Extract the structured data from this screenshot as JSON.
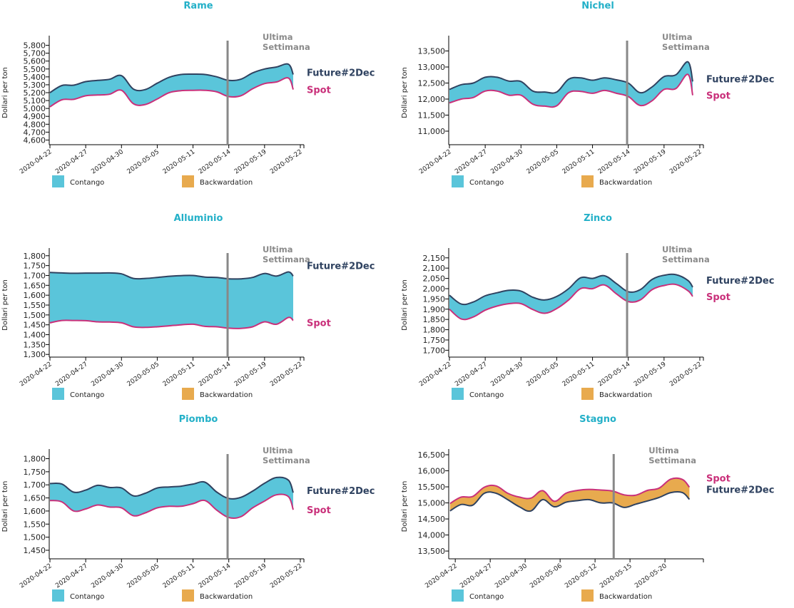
{
  "colors": {
    "title": "#23b0c8",
    "contango": "#5ac5da",
    "backwardation": "#e8aa4e",
    "future_line": "#2f4260",
    "spot_line": "#c9307a",
    "last_week_line": "#888888",
    "last_week_text": "#8a8a8a"
  },
  "common": {
    "ylabel": "Dollari per ton",
    "last_week_line1": "Ultima",
    "last_week_line2": "Settimana",
    "future_label": "Future#2Dec",
    "spot_label": "Spot",
    "legend": [
      {
        "label": "Contango",
        "color": "#5ac5da"
      },
      {
        "label": "Backwardation",
        "color": "#e8aa4e"
      }
    ]
  },
  "chart_data": [
    {
      "type": "area",
      "title": "Rame",
      "ylabel": "Dollari per ton",
      "ylim": [
        4550,
        5850
      ],
      "yticks": [
        4600,
        4700,
        4800,
        4900,
        5000,
        5100,
        5200,
        5300,
        5400,
        5500,
        5600,
        5700,
        5800
      ],
      "xlim": [
        0,
        21.3
      ],
      "xticks": [
        {
          "i": 0,
          "label": "2020-04-22"
        },
        {
          "i": 3,
          "label": "2020-04-27"
        },
        {
          "i": 6,
          "label": "2020-04-30"
        },
        {
          "i": 9,
          "label": "2020-05-05"
        },
        {
          "i": 12,
          "label": "2020-05-11"
        },
        {
          "i": 15,
          "label": "2020-05-14"
        },
        {
          "i": 18,
          "label": "2020-05-19"
        },
        {
          "i": 21,
          "label": "2020-05-22"
        }
      ],
      "last_week_x": 14.9,
      "label_order": [
        "future",
        "spot"
      ],
      "x": [
        0,
        1,
        2,
        3,
        4,
        5,
        6,
        7,
        8,
        9,
        10,
        11,
        12,
        13,
        14,
        15,
        16,
        17,
        18,
        19,
        20,
        20.4
      ],
      "series": [
        {
          "name": "Future#2Dec",
          "values": [
            5200,
            5290,
            5295,
            5340,
            5355,
            5370,
            5415,
            5245,
            5240,
            5320,
            5395,
            5430,
            5435,
            5430,
            5400,
            5355,
            5370,
            5450,
            5500,
            5525,
            5560,
            5430
          ]
        },
        {
          "name": "Spot",
          "values": [
            5020,
            5110,
            5115,
            5160,
            5170,
            5180,
            5230,
            5060,
            5050,
            5120,
            5200,
            5225,
            5230,
            5230,
            5210,
            5150,
            5160,
            5250,
            5315,
            5335,
            5385,
            5240
          ]
        }
      ]
    },
    {
      "type": "area",
      "title": "Nichel",
      "ylabel": "Dollari per ton",
      "ylim": [
        10600,
        13800
      ],
      "yticks": [
        11000,
        11500,
        12000,
        12500,
        13000,
        13500
      ],
      "xlim": [
        0,
        21.3
      ],
      "xticks": [
        {
          "i": 0,
          "label": "2020-04-22"
        },
        {
          "i": 3,
          "label": "2020-04-27"
        },
        {
          "i": 6,
          "label": "2020-04-30"
        },
        {
          "i": 9,
          "label": "2020-05-05"
        },
        {
          "i": 12,
          "label": "2020-05-11"
        },
        {
          "i": 15,
          "label": "2020-05-14"
        },
        {
          "i": 18,
          "label": "2020-05-19"
        },
        {
          "i": 21,
          "label": "2020-05-22"
        }
      ],
      "last_week_x": 14.9,
      "label_order": [
        "future",
        "spot"
      ],
      "x": [
        0,
        1,
        2,
        3,
        4,
        5,
        6,
        7,
        8,
        9,
        10,
        11,
        12,
        13,
        14,
        15,
        16,
        17,
        18,
        19,
        20,
        20.4
      ],
      "series": [
        {
          "name": "Future#2Dec",
          "values": [
            12300,
            12450,
            12500,
            12680,
            12680,
            12560,
            12550,
            12250,
            12220,
            12220,
            12620,
            12660,
            12590,
            12660,
            12600,
            12500,
            12200,
            12380,
            12700,
            12760,
            13160,
            12550
          ]
        },
        {
          "name": "Spot",
          "values": [
            11880,
            12000,
            12050,
            12250,
            12250,
            12120,
            12120,
            11840,
            11780,
            11790,
            12200,
            12240,
            12180,
            12270,
            12180,
            12080,
            11800,
            11950,
            12300,
            12330,
            12770,
            12120
          ]
        }
      ]
    },
    {
      "type": "area",
      "title": "Alluminio",
      "ylabel": "Dollari per ton",
      "ylim": [
        1290,
        1810
      ],
      "yticks": [
        1300,
        1350,
        1400,
        1450,
        1500,
        1550,
        1600,
        1650,
        1700,
        1750,
        1800
      ],
      "xlim": [
        0,
        21.3
      ],
      "xticks": [
        {
          "i": 0,
          "label": "2020-04-22"
        },
        {
          "i": 3,
          "label": "2020-04-27"
        },
        {
          "i": 6,
          "label": "2020-04-30"
        },
        {
          "i": 9,
          "label": "2020-05-05"
        },
        {
          "i": 12,
          "label": "2020-05-11"
        },
        {
          "i": 15,
          "label": "2020-05-14"
        },
        {
          "i": 18,
          "label": "2020-05-19"
        },
        {
          "i": 21,
          "label": "2020-05-22"
        }
      ],
      "last_week_x": 14.9,
      "label_order": [
        "future",
        "spot"
      ],
      "x": [
        0,
        1,
        2,
        3,
        4,
        5,
        6,
        7,
        8,
        9,
        10,
        11,
        12,
        13,
        14,
        15,
        16,
        17,
        18,
        19,
        20,
        20.4
      ],
      "series": [
        {
          "name": "Future#2Dec",
          "values": [
            1715,
            1713,
            1711,
            1712,
            1712,
            1713,
            1708,
            1685,
            1685,
            1690,
            1696,
            1699,
            1700,
            1692,
            1690,
            1683,
            1683,
            1690,
            1710,
            1697,
            1718,
            1697
          ]
        },
        {
          "name": "Spot",
          "values": [
            1460,
            1472,
            1472,
            1471,
            1465,
            1464,
            1460,
            1440,
            1437,
            1440,
            1445,
            1450,
            1453,
            1442,
            1440,
            1433,
            1432,
            1440,
            1465,
            1453,
            1487,
            1472
          ]
        }
      ]
    },
    {
      "type": "area",
      "title": "Zinco",
      "ylabel": "Dollari per ton",
      "ylim": [
        1670,
        2170
      ],
      "yticks": [
        1700,
        1750,
        1800,
        1850,
        1900,
        1950,
        2000,
        2050,
        2100,
        2150
      ],
      "xlim": [
        0,
        21.3
      ],
      "xticks": [
        {
          "i": 0,
          "label": "2020-04-22"
        },
        {
          "i": 3,
          "label": "2020-04-27"
        },
        {
          "i": 6,
          "label": "2020-04-30"
        },
        {
          "i": 9,
          "label": "2020-05-05"
        },
        {
          "i": 12,
          "label": "2020-05-11"
        },
        {
          "i": 15,
          "label": "2020-05-14"
        },
        {
          "i": 18,
          "label": "2020-05-19"
        },
        {
          "i": 21,
          "label": "2020-05-22"
        }
      ],
      "last_week_x": 14.9,
      "label_order": [
        "future",
        "spot"
      ],
      "x": [
        0,
        1,
        2,
        3,
        4,
        5,
        6,
        7,
        8,
        9,
        10,
        11,
        12,
        13,
        14,
        15,
        16,
        17,
        18,
        19,
        20,
        20.4
      ],
      "series": [
        {
          "name": "Future#2Dec",
          "values": [
            1968,
            1925,
            1935,
            1965,
            1980,
            1992,
            1988,
            1958,
            1945,
            1962,
            2000,
            2053,
            2050,
            2063,
            2025,
            1985,
            1995,
            2045,
            2065,
            2068,
            2040,
            2007
          ]
        },
        {
          "name": "Spot",
          "values": [
            1900,
            1852,
            1862,
            1895,
            1915,
            1927,
            1927,
            1898,
            1880,
            1903,
            1945,
            2000,
            2000,
            2018,
            1975,
            1937,
            1945,
            1995,
            2015,
            2020,
            1990,
            1962
          ]
        }
      ]
    },
    {
      "type": "area",
      "title": "Piombo",
      "ylabel": "Dollari per ton",
      "ylim": [
        1420,
        1815
      ],
      "yticks": [
        1450,
        1500,
        1550,
        1600,
        1650,
        1700,
        1750,
        1800
      ],
      "xlim": [
        0,
        21.3
      ],
      "xticks": [
        {
          "i": 0,
          "label": "2020-04-22"
        },
        {
          "i": 3,
          "label": "2020-04-27"
        },
        {
          "i": 6,
          "label": "2020-04-30"
        },
        {
          "i": 9,
          "label": "2020-05-05"
        },
        {
          "i": 12,
          "label": "2020-05-11"
        },
        {
          "i": 15,
          "label": "2020-05-14"
        },
        {
          "i": 18,
          "label": "2020-05-19"
        },
        {
          "i": 21,
          "label": "2020-05-22"
        }
      ],
      "last_week_x": 14.9,
      "label_order": [
        "future",
        "spot"
      ],
      "x": [
        0,
        1,
        2,
        3,
        4,
        5,
        6,
        7,
        8,
        9,
        10,
        11,
        12,
        13,
        14,
        15,
        16,
        17,
        18,
        19,
        20,
        20.4
      ],
      "series": [
        {
          "name": "Future#2Dec",
          "values": [
            1705,
            1703,
            1672,
            1680,
            1698,
            1690,
            1688,
            1658,
            1668,
            1688,
            1692,
            1695,
            1703,
            1710,
            1672,
            1648,
            1652,
            1676,
            1706,
            1728,
            1718,
            1670
          ]
        },
        {
          "name": "Spot",
          "values": [
            1640,
            1635,
            1600,
            1608,
            1623,
            1615,
            1612,
            1582,
            1593,
            1612,
            1618,
            1618,
            1628,
            1640,
            1603,
            1575,
            1578,
            1612,
            1638,
            1662,
            1655,
            1605
          ]
        }
      ]
    },
    {
      "type": "area",
      "title": "Stagno",
      "ylabel": "Dollari per ton",
      "ylim": [
        13280,
        16500
      ],
      "yticks": [
        13500,
        14000,
        14500,
        15000,
        15500,
        16000,
        16500
      ],
      "xlim": [
        -0.5,
        21.3
      ],
      "xticks": [
        {
          "i": 0,
          "label": "2020-04-22"
        },
        {
          "i": 3,
          "label": "2020-04-27"
        },
        {
          "i": 6,
          "label": "2020-04-30"
        },
        {
          "i": 9,
          "label": "2020-05-06"
        },
        {
          "i": 12,
          "label": "2020-05-12"
        },
        {
          "i": 15,
          "label": "2020-05-15"
        },
        {
          "i": 18,
          "label": "2020-05-20"
        }
      ],
      "last_week_x": 13.6,
      "label_order": [
        "spot",
        "future"
      ],
      "x": [
        -0.45,
        0.5,
        1.5,
        2.5,
        3.5,
        4.5,
        5.5,
        6.5,
        7.5,
        8.5,
        9.5,
        10.5,
        11.5,
        12.5,
        13.5,
        14.5,
        15.5,
        16.5,
        17.5,
        18.5,
        19.5,
        20.1
      ],
      "series": [
        {
          "name": "Future#2Dec",
          "values": [
            14750,
            14950,
            14930,
            15300,
            15300,
            15100,
            14880,
            14750,
            15100,
            14880,
            15020,
            15070,
            15100,
            15000,
            15000,
            14860,
            14960,
            15060,
            15170,
            15320,
            15320,
            15110
          ]
        },
        {
          "name": "Spot",
          "values": [
            14980,
            15180,
            15200,
            15490,
            15530,
            15300,
            15180,
            15150,
            15380,
            15050,
            15300,
            15390,
            15420,
            15400,
            15370,
            15250,
            15240,
            15390,
            15460,
            15740,
            15730,
            15490
          ]
        }
      ]
    }
  ]
}
